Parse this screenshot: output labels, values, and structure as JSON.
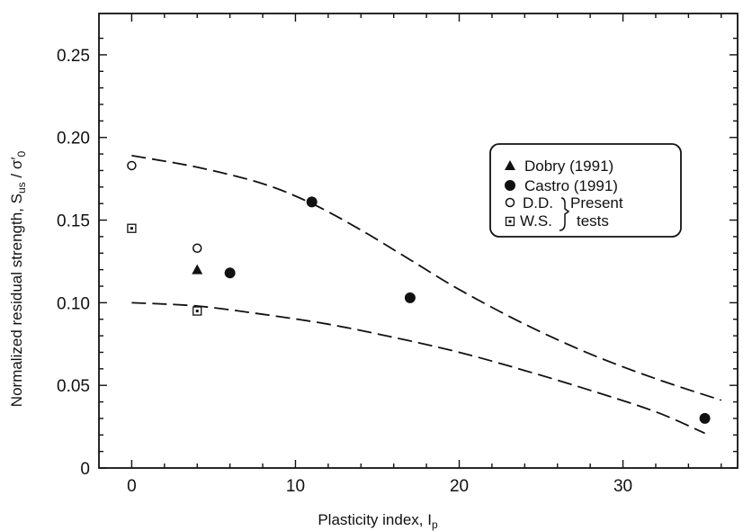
{
  "chart_data": {
    "type": "scatter",
    "xlabel": "Plasticity index, I",
    "xlabel_sub": "p",
    "ylabel": "Normalized residual strength, S",
    "ylabel_sub1": "us",
    "ylabel_mid": " / σ′",
    "ylabel_sub2": "0",
    "xlim": [
      -2,
      37
    ],
    "ylim": [
      0,
      0.275
    ],
    "x_ticks": [
      0,
      10,
      20,
      30
    ],
    "x_tick_labels": [
      "0",
      "10",
      "20",
      "30"
    ],
    "y_ticks": [
      0,
      0.05,
      0.1,
      0.15,
      0.2,
      0.25
    ],
    "y_tick_labels": [
      "0",
      "0.05",
      "0.10",
      "0.15",
      "0.20",
      "0.25"
    ],
    "grid": false,
    "series": [
      {
        "name": "Dobry (1991)",
        "marker": "triangle",
        "points": [
          [
            4,
            0.12
          ]
        ]
      },
      {
        "name": "Castro (1991)",
        "marker": "filled-circle",
        "points": [
          [
            6,
            0.118
          ],
          [
            11,
            0.161
          ],
          [
            17,
            0.103
          ],
          [
            35,
            0.03
          ]
        ]
      },
      {
        "name": "D.D.",
        "marker": "open-circle",
        "points": [
          [
            0,
            0.183
          ],
          [
            4,
            0.133
          ]
        ]
      },
      {
        "name": "W.S.",
        "marker": "boxed-dot",
        "points": [
          [
            0,
            0.145
          ],
          [
            4,
            0.095
          ]
        ]
      }
    ],
    "bounds": [
      {
        "style": "dashed",
        "points": [
          [
            0,
            0.189
          ],
          [
            4,
            0.182
          ],
          [
            8,
            0.172
          ],
          [
            11,
            0.16
          ],
          [
            14,
            0.144
          ],
          [
            17,
            0.126
          ],
          [
            20,
            0.108
          ],
          [
            24,
            0.087
          ],
          [
            28,
            0.069
          ],
          [
            32,
            0.054
          ],
          [
            36,
            0.041
          ]
        ]
      },
      {
        "style": "dashed",
        "points": [
          [
            0,
            0.1
          ],
          [
            4,
            0.098
          ],
          [
            8,
            0.093
          ],
          [
            12,
            0.087
          ],
          [
            16,
            0.079
          ],
          [
            20,
            0.07
          ],
          [
            24,
            0.059
          ],
          [
            28,
            0.047
          ],
          [
            32,
            0.034
          ],
          [
            35,
            0.021
          ]
        ]
      }
    ],
    "legend": {
      "position": "top-right",
      "entries": [
        {
          "marker": "triangle",
          "label": "Dobry (1991)"
        },
        {
          "marker": "filled-circle",
          "label": "Castro (1991)"
        },
        {
          "marker": "open-circle",
          "label": "D.D."
        },
        {
          "marker": "boxed-dot",
          "label": "W.S."
        }
      ],
      "bracket_label_1": "Present",
      "bracket_label_2": "tests"
    }
  }
}
